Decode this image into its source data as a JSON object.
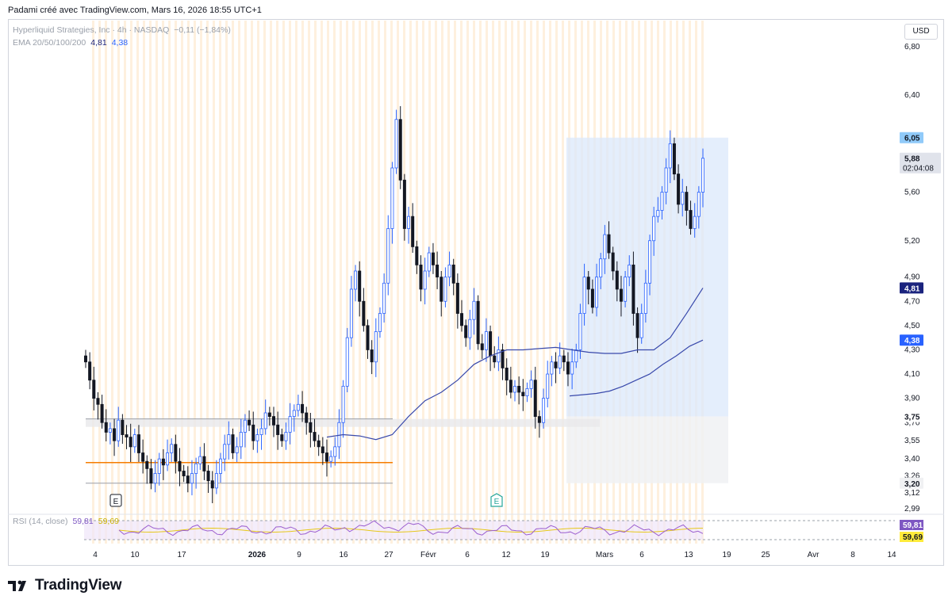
{
  "header": {
    "caption": "Padami créé avec TradingView.com, Mars 16, 2026 18:55 UTC+1"
  },
  "legend": {
    "symbol": "Hyperliquid Strategies, Inc · 4h · NASDAQ",
    "change": "−0,11 (−1,84%)",
    "ema_label": "EMA 20/50/100/200",
    "ema_v1": "4,81",
    "ema_v2": "4,38",
    "rsi_label": "RSI (14, close)",
    "rsi_v1": "59,81",
    "rsi_v2": "59,69"
  },
  "currency": "USD",
  "colors": {
    "up": "#2962ff",
    "down": "#131722",
    "ema_line": "#3949ab",
    "orange_line": "#f57c00",
    "zone_blue": "#dbe8fb",
    "zone_grey": "#f0f1f3",
    "rsi_line": "#9c5fcf",
    "rsi_ma": "#e6c81a",
    "label_dark": "#1a237e",
    "label_blue": "#2962ff",
    "label_rsi": "#7e57c2",
    "label_yellow": "#ffeb3b"
  },
  "chart_data": {
    "type": "candlestick",
    "price_axis_ticks": [
      "6,80",
      "6,40",
      "5,60",
      "5,20",
      "4,90",
      "4,70",
      "4,50",
      "4,30",
      "4,10",
      "3,90",
      "3,70",
      "3,55",
      "3,40",
      "3,26",
      "3,12",
      "2,99"
    ],
    "price_range": [
      2.95,
      6.95
    ],
    "price_labels": [
      {
        "text": "6,05",
        "value": 6.05,
        "kind": "light"
      },
      {
        "text": "5,88",
        "value": 5.88,
        "kind": "grey",
        "sub": "02:04:08"
      },
      {
        "text": "4,81",
        "value": 4.81,
        "kind": "dark"
      },
      {
        "text": "4,38",
        "value": 4.38,
        "kind": "blue"
      },
      {
        "text": "3,75",
        "value": 3.75,
        "kind": "plain"
      },
      {
        "text": "3,20",
        "value": 3.2,
        "kind": "plaingrey"
      }
    ],
    "time_axis_ticks": [
      "4",
      "10",
      "17",
      "2026",
      "9",
      "16",
      "27",
      "Févr",
      "6",
      "12",
      "19",
      "Mars",
      "6",
      "13",
      "19",
      "25",
      "Avr",
      "8",
      "14"
    ],
    "earnings_markers": [
      "E",
      "E"
    ],
    "series": [
      {
        "name": "EMA 20/50/100/200",
        "values": [
          3.58,
          3.6,
          3.59,
          3.56,
          3.6,
          3.75,
          3.88,
          3.95,
          4.05,
          4.18,
          4.25,
          4.3,
          4.3,
          4.31,
          4.32,
          4.3,
          4.28,
          4.27,
          4.27,
          4.3,
          4.3,
          4.4,
          4.6,
          4.81
        ]
      },
      {
        "name": "EMA 20/50/100/200",
        "values": [
          3.92,
          3.93,
          3.94,
          3.96,
          4.0,
          4.05,
          4.1,
          4.18,
          4.25,
          4.33,
          4.38
        ]
      }
    ],
    "closes": [
      4.2,
      4.05,
      3.9,
      3.85,
      3.7,
      3.62,
      3.65,
      3.55,
      3.72,
      3.6,
      3.58,
      3.5,
      3.6,
      3.45,
      3.38,
      3.32,
      3.2,
      3.28,
      3.4,
      3.35,
      3.45,
      3.52,
      3.38,
      3.3,
      3.26,
      3.2,
      3.28,
      3.36,
      3.42,
      3.3,
      3.22,
      3.16,
      3.28,
      3.4,
      3.52,
      3.6,
      3.45,
      3.5,
      3.62,
      3.72,
      3.68,
      3.55,
      3.6,
      3.65,
      3.78,
      3.75,
      3.68,
      3.6,
      3.55,
      3.62,
      3.75,
      3.8,
      3.85,
      3.78,
      3.7,
      3.62,
      3.55,
      3.5,
      3.45,
      3.38,
      3.42,
      3.5,
      3.7,
      4.0,
      4.4,
      4.8,
      4.95,
      4.7,
      4.5,
      4.3,
      4.2,
      4.45,
      4.6,
      4.85,
      5.3,
      5.8,
      6.2,
      5.7,
      5.3,
      5.4,
      5.15,
      5.0,
      4.8,
      4.95,
      5.1,
      5.0,
      4.9,
      4.7,
      4.9,
      5.0,
      4.85,
      4.6,
      4.5,
      4.4,
      4.55,
      4.7,
      4.35,
      4.3,
      4.45,
      4.25,
      4.2,
      4.3,
      4.15,
      4.05,
      3.95,
      4.0,
      3.95,
      3.92,
      3.98,
      4.05,
      3.75,
      3.7,
      3.9,
      4.1,
      4.2,
      4.15,
      4.25,
      4.2,
      4.1,
      4.2,
      4.3,
      4.6,
      4.9,
      4.8,
      4.65,
      4.9,
      5.05,
      5.25,
      5.1,
      4.95,
      4.8,
      4.7,
      4.9,
      5.0,
      4.6,
      4.4,
      4.6,
      4.85,
      5.2,
      5.4,
      5.45,
      5.6,
      5.8,
      6.0,
      5.75,
      5.5,
      5.6,
      5.45,
      5.3,
      5.4,
      5.6,
      5.88
    ],
    "rsi_label_value": "59,81",
    "rsi_ma_value": "59,69"
  }
}
